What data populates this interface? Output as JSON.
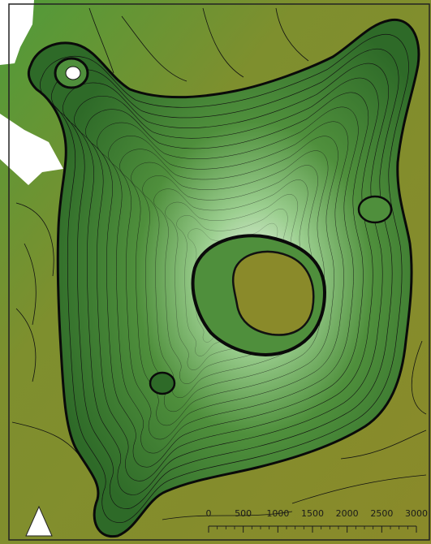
{
  "map": {
    "type": "contour-relief",
    "subject": "island-topography",
    "colors": {
      "lowland": "#8a8a2a",
      "sea_shallow": "#7e8f2e",
      "green_dark": "#2e6a28",
      "green_mid": "#4f8f3c",
      "green_light": "#9ccf90",
      "summit_white": "#eef5ea",
      "contour": "#111111",
      "scale_dark": "#1a1a1a"
    },
    "north_arrow": {
      "icon": "north-arrow-icon"
    },
    "scale_bar": {
      "ticks": [
        "0",
        "500",
        "1000",
        "1500",
        "2000",
        "2500",
        "3000"
      ]
    }
  }
}
